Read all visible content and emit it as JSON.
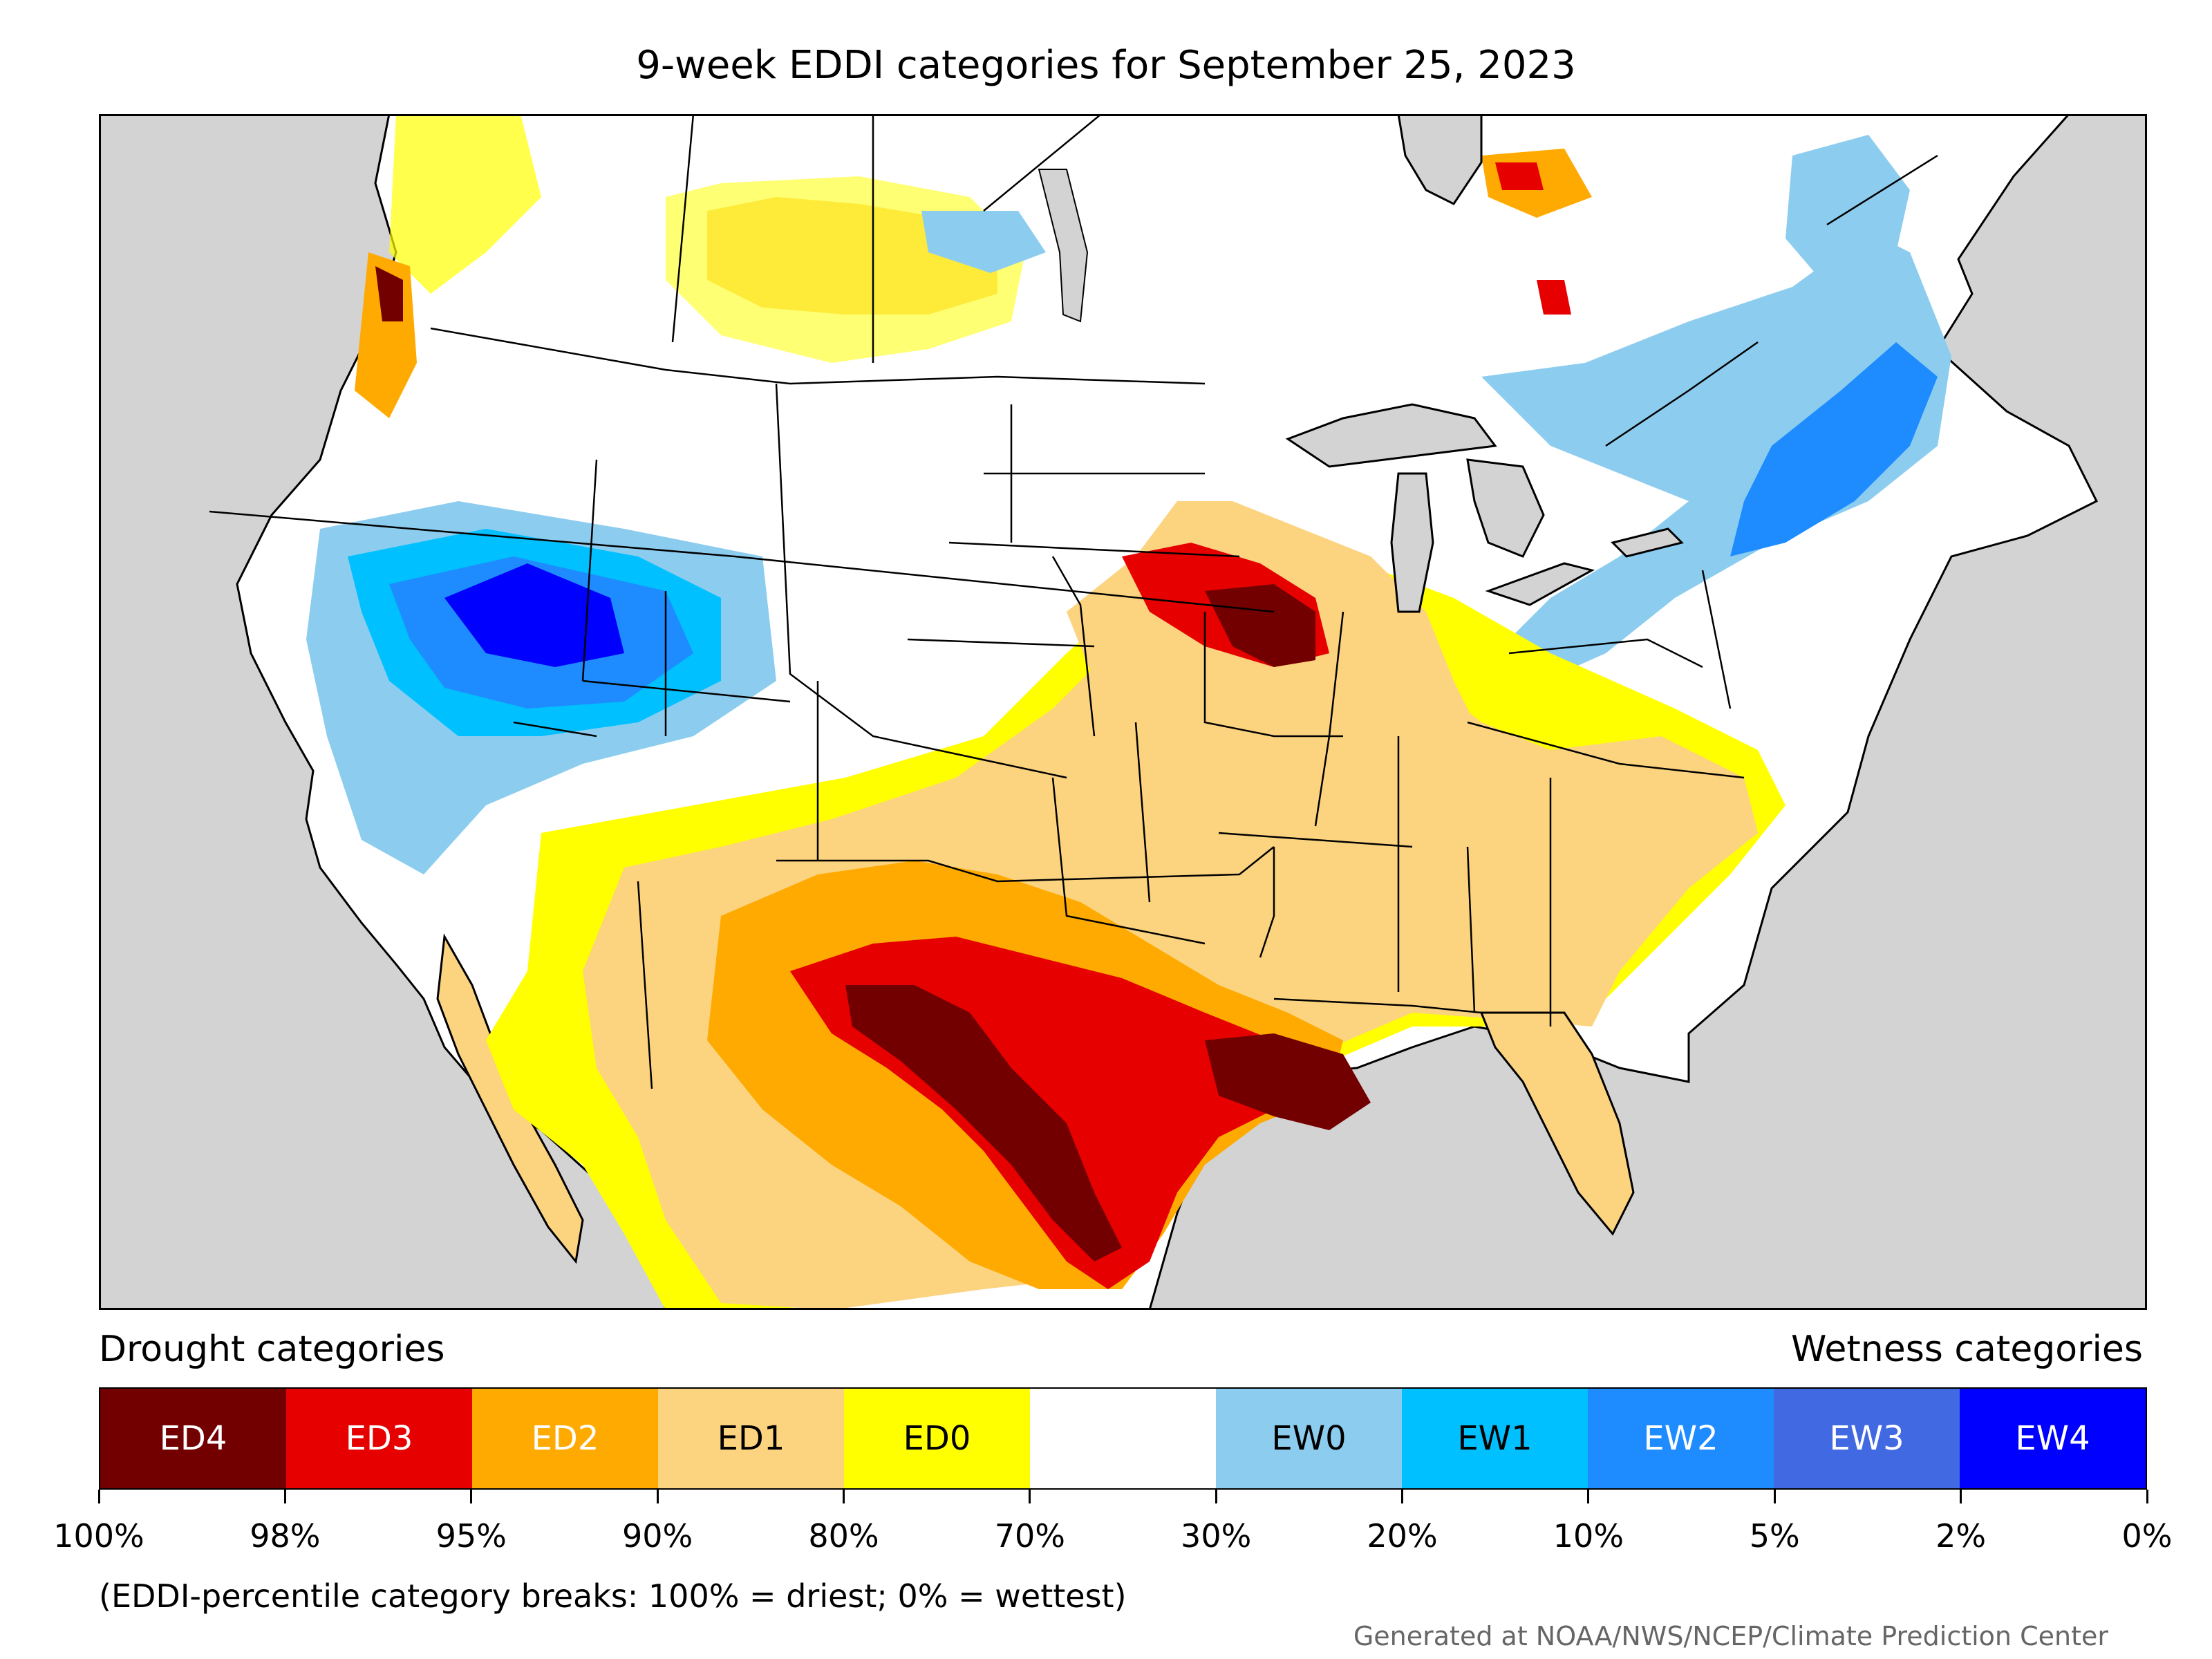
{
  "title": "9-week EDDI categories for September 25, 2023",
  "legend": {
    "drought_heading": "Drought categories",
    "wetness_heading": "Wetness categories",
    "categories": [
      {
        "label": "ED4",
        "color": "#730000",
        "text_color": "#ffffff"
      },
      {
        "label": "ED3",
        "color": "#e60000",
        "text_color": "#ffffff"
      },
      {
        "label": "ED2",
        "color": "#ffaa00",
        "text_color": "#ffffff"
      },
      {
        "label": "ED1",
        "color": "#fcd37f",
        "text_color": "#000000"
      },
      {
        "label": "ED0",
        "color": "#ffff00",
        "text_color": "#000000"
      },
      {
        "label": "",
        "color": "#ffffff",
        "text_color": "#000000"
      },
      {
        "label": "EW0",
        "color": "#8ccdef",
        "text_color": "#000000"
      },
      {
        "label": "EW1",
        "color": "#00c0ff",
        "text_color": "#000000"
      },
      {
        "label": "EW2",
        "color": "#1e8cff",
        "text_color": "#ffffff"
      },
      {
        "label": "EW3",
        "color": "#4169e1",
        "text_color": "#ffffff"
      },
      {
        "label": "EW4",
        "color": "#0000ff",
        "text_color": "#ffffff"
      }
    ],
    "tick_labels": [
      "100%",
      "98%",
      "95%",
      "90%",
      "80%",
      "70%",
      "30%",
      "20%",
      "10%",
      "5%",
      "2%",
      "0%"
    ]
  },
  "breaks_note": "(EDDI-percentile category breaks: 100% = driest; 0% = wettest)",
  "credit": "Generated at NOAA/NWS/NCEP/Climate Prediction Center",
  "map": {
    "ocean_color": "#d3d3d3",
    "lake_color": "#d3d3d3",
    "border_color": "#000000"
  }
}
